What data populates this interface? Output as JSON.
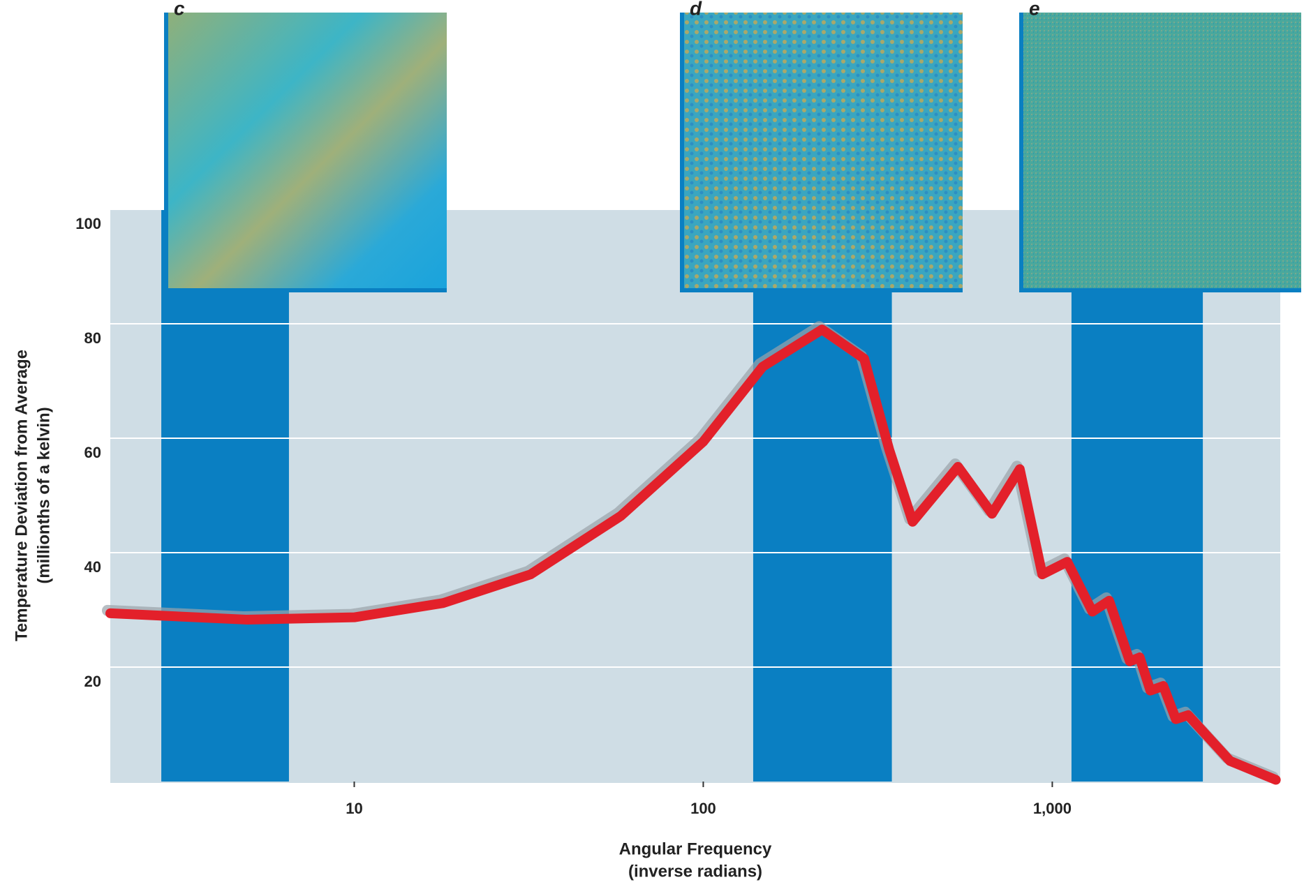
{
  "chart_data": {
    "type": "line",
    "x_label": "Angular Frequency",
    "x_label_sub": "(inverse radians)",
    "y_label": "Temperature Deviation from Average",
    "y_label_sub": "(millionths of a kelvin)",
    "x_log": true,
    "xlim": [
      2,
      4500
    ],
    "ylim": [
      0,
      100
    ],
    "xticks": [
      10,
      100,
      {
        "value": 1000,
        "label": "1,000"
      }
    ],
    "yticks": [
      20,
      40,
      60,
      80,
      100
    ],
    "grid": true,
    "bands": [
      {
        "label": "c",
        "range": [
          2.8,
          6.5
        ]
      },
      {
        "label": "d",
        "range": [
          139,
          347
        ]
      },
      {
        "label": "e",
        "range": [
          1135,
          2700
        ]
      }
    ],
    "x": [
      2,
      4.9,
      10,
      18,
      32,
      58,
      100,
      148,
      219,
      289,
      341,
      398,
      537,
      672,
      807,
      936,
      1104,
      1303,
      1455,
      1668,
      1780,
      1910,
      2080,
      2260,
      2450,
      3230,
      4370
    ],
    "series": [
      {
        "name": "Temperature deviation",
        "color": "#e3202a",
        "values": [
          29.4,
          28.3,
          28.7,
          31.2,
          36.2,
          46.4,
          59.4,
          72.5,
          79,
          73.9,
          58,
          45.4,
          55,
          46.8,
          54.6,
          36.2,
          38.4,
          29.7,
          31.6,
          21,
          21.7,
          15.9,
          16.7,
          10.9,
          11.6,
          3.6,
          0.3
        ]
      }
    ]
  }
}
